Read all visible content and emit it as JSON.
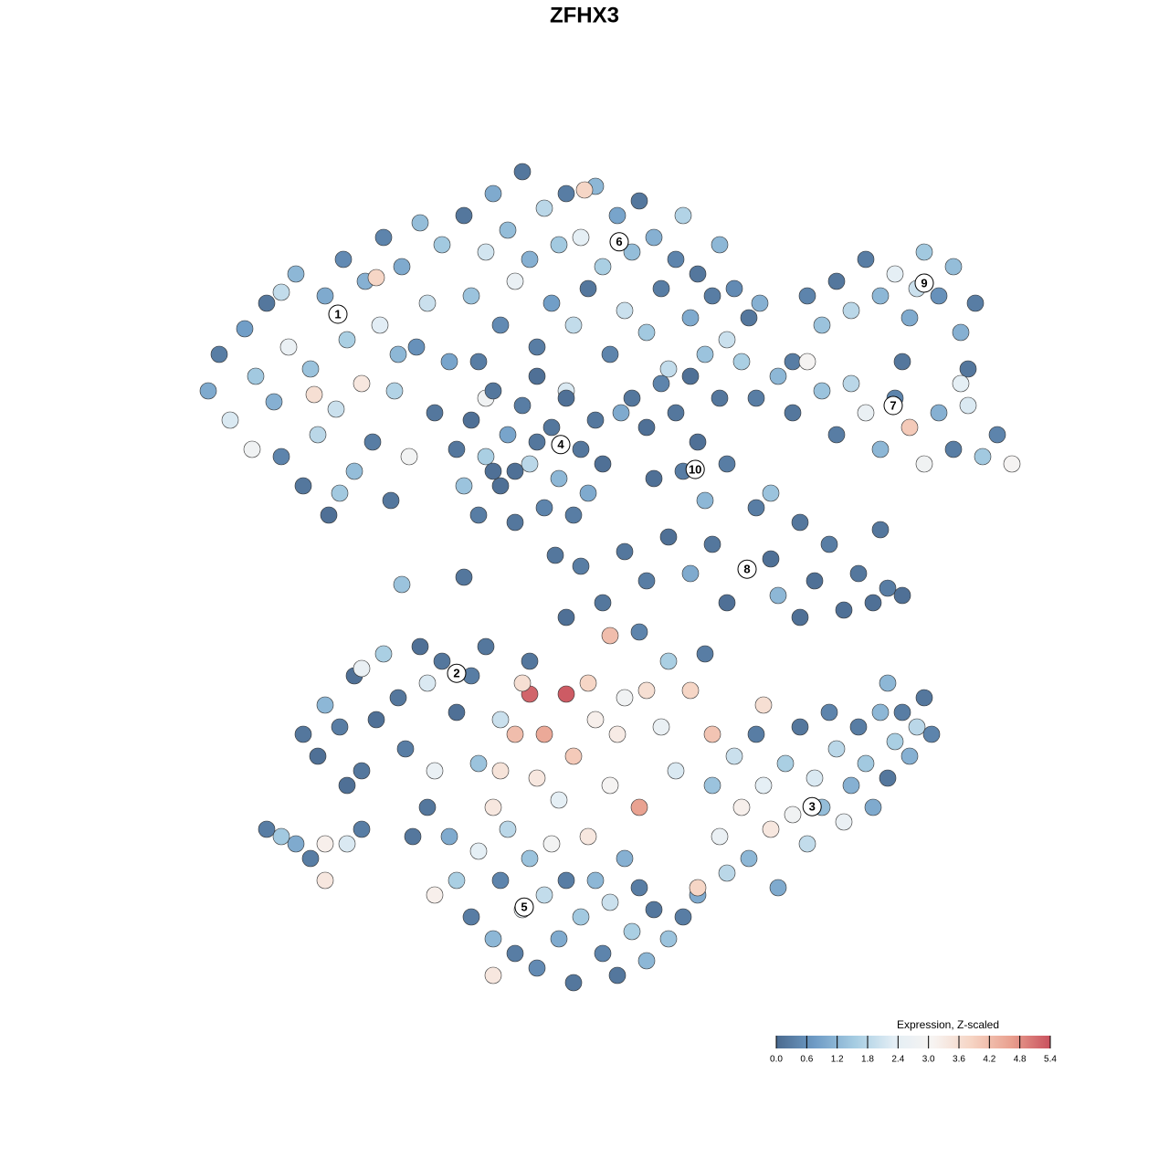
{
  "chart_data": {
    "type": "scatter",
    "title": "ZFHX3",
    "xlim": [
      -12,
      12
    ],
    "ylim": [
      -12,
      12
    ],
    "colorbar": {
      "title": "Expression, Z-scaled",
      "clim": [
        0,
        5.4
      ],
      "colors": [
        "#4a6a8f",
        "#6f9cc6",
        "#a5cce2",
        "#e3eef5",
        "#f7f4f2",
        "#f6d4c3",
        "#e9a08f",
        "#c9515e"
      ],
      "ticks": [
        {
          "value": 0,
          "label": "0.0"
        },
        {
          "value": 0.6,
          "label": "0.6"
        },
        {
          "value": 1.2,
          "label": "1.2"
        },
        {
          "value": 1.8,
          "label": "1.8"
        },
        {
          "value": 2.4,
          "label": "2.4"
        },
        {
          "value": 3,
          "label": "3.0"
        },
        {
          "value": 3.6,
          "label": "3.6"
        },
        {
          "value": 4.2,
          "label": "4.2"
        },
        {
          "value": 4.8,
          "label": "4.8"
        },
        {
          "value": 5.4,
          "label": "5.4"
        }
      ]
    },
    "clusters": [
      {
        "label": "1",
        "x": -7.25,
        "y": 6.9
      },
      {
        "label": "2",
        "x": -4,
        "y": -2.93
      },
      {
        "label": "3",
        "x": 5.73,
        "y": -6.58
      },
      {
        "label": "4",
        "x": -1.15,
        "y": 3.33
      },
      {
        "label": "5",
        "x": -2.15,
        "y": -9.33
      },
      {
        "label": "6",
        "x": 0.45,
        "y": 8.88
      },
      {
        "label": "7",
        "x": 7.95,
        "y": 4.4
      },
      {
        "label": "8",
        "x": 3.95,
        "y": -0.08
      },
      {
        "label": "9",
        "x": 8.8,
        "y": 7.75
      },
      {
        "label": "10",
        "x": 2.53,
        "y": 2.65
      }
    ],
    "points": [
      [
        -10.8,
        4.8,
        1.0
      ],
      [
        -10.5,
        5.8,
        0.3
      ],
      [
        -10.2,
        4.0,
        2.2
      ],
      [
        -9.8,
        6.5,
        0.8
      ],
      [
        -9.5,
        5.2,
        1.5
      ],
      [
        -9.2,
        7.2,
        0.2
      ],
      [
        -9.0,
        4.5,
        1.1
      ],
      [
        -8.8,
        3.0,
        0.4
      ],
      [
        -8.6,
        6.0,
        2.6
      ],
      [
        -8.4,
        8.0,
        1.2
      ],
      [
        -8.2,
        2.2,
        0.2
      ],
      [
        -8.0,
        5.4,
        1.4
      ],
      [
        -7.8,
        3.6,
        1.8
      ],
      [
        -7.6,
        7.4,
        1.0
      ],
      [
        -7.5,
        1.4,
        0.1
      ],
      [
        -7.3,
        4.3,
        2.0
      ],
      [
        -7.1,
        8.4,
        0.5
      ],
      [
        -7.0,
        6.2,
        1.6
      ],
      [
        -6.8,
        2.6,
        1.3
      ],
      [
        -6.6,
        5.0,
        3.4
      ],
      [
        -6.5,
        7.8,
        1.1
      ],
      [
        -6.3,
        3.4,
        0.3
      ],
      [
        -6.1,
        6.6,
        2.3
      ],
      [
        -6.0,
        9.0,
        0.4
      ],
      [
        -5.8,
        1.8,
        0.2
      ],
      [
        -5.7,
        4.8,
        1.7
      ],
      [
        -5.5,
        8.2,
        1.0
      ],
      [
        -5.3,
        3.0,
        2.9
      ],
      [
        -5.1,
        6.0,
        0.6
      ],
      [
        -5.0,
        9.4,
        1.3
      ],
      [
        -4.8,
        7.2,
        2.0
      ],
      [
        -4.6,
        4.2,
        0.2
      ],
      [
        -4.4,
        8.8,
        1.5
      ],
      [
        -4.2,
        5.6,
        0.9
      ],
      [
        -6.2,
        7.9,
        3.8
      ],
      [
        -7.9,
        4.7,
        3.6
      ],
      [
        -9.6,
        3.2,
        2.8
      ],
      [
        -7.2,
        2.0,
        1.5
      ],
      [
        -8.8,
        7.5,
        1.9
      ],
      [
        -5.6,
        5.8,
        1.2
      ],
      [
        -3.8,
        9.6,
        0.2
      ],
      [
        -3.6,
        7.4,
        1.4
      ],
      [
        -3.4,
        5.6,
        0.3
      ],
      [
        -3.2,
        8.6,
        2.1
      ],
      [
        -3.0,
        10.2,
        1.0
      ],
      [
        -2.8,
        6.6,
        0.5
      ],
      [
        -2.6,
        9.2,
        1.3
      ],
      [
        -2.4,
        7.8,
        2.6
      ],
      [
        -2.2,
        10.8,
        0.2
      ],
      [
        -2.0,
        8.4,
        1.1
      ],
      [
        -1.8,
        6.0,
        0.3
      ],
      [
        -1.6,
        9.8,
        1.8
      ],
      [
        -1.4,
        7.2,
        0.8
      ],
      [
        -1.2,
        8.8,
        1.5
      ],
      [
        -1.0,
        10.2,
        0.3
      ],
      [
        -0.8,
        6.6,
        1.9
      ],
      [
        -0.6,
        9.0,
        2.4
      ],
      [
        -0.4,
        7.6,
        0.2
      ],
      [
        -0.2,
        10.4,
        1.2
      ],
      [
        0.0,
        8.2,
        1.6
      ],
      [
        0.2,
        5.8,
        0.4
      ],
      [
        0.4,
        9.6,
        0.9
      ],
      [
        0.6,
        7.0,
        2.0
      ],
      [
        0.8,
        8.6,
        1.3
      ],
      [
        1.0,
        10.0,
        0.2
      ],
      [
        1.2,
        6.4,
        1.5
      ],
      [
        1.4,
        9.0,
        1.1
      ],
      [
        1.6,
        7.6,
        0.3
      ],
      [
        1.8,
        5.4,
        1.9
      ],
      [
        2.0,
        8.4,
        0.4
      ],
      [
        2.2,
        9.6,
        1.7
      ],
      [
        2.4,
        6.8,
        1.0
      ],
      [
        2.6,
        8.0,
        0.2
      ],
      [
        2.8,
        5.8,
        1.4
      ],
      [
        3.0,
        7.4,
        0.3
      ],
      [
        3.2,
        8.8,
        1.2
      ],
      [
        3.4,
        6.2,
        2.0
      ],
      [
        3.6,
        7.6,
        0.5
      ],
      [
        3.8,
        5.6,
        1.6
      ],
      [
        4.0,
        6.8,
        0.2
      ],
      [
        4.3,
        7.2,
        1.1
      ],
      [
        -1.0,
        4.8,
        2.2
      ],
      [
        0.5,
        4.2,
        1.0
      ],
      [
        -3.2,
        4.6,
        2.8
      ],
      [
        -0.5,
        10.3,
        3.8
      ],
      [
        -4.0,
        3.2,
        0.2
      ],
      [
        -3.8,
        2.2,
        1.4
      ],
      [
        -3.6,
        4.0,
        0.1
      ],
      [
        -3.4,
        1.4,
        0.3
      ],
      [
        -3.2,
        3.0,
        1.6
      ],
      [
        -3.0,
        4.8,
        0.2
      ],
      [
        -2.8,
        2.2,
        0.1
      ],
      [
        -2.6,
        3.6,
        0.9
      ],
      [
        -2.4,
        1.2,
        0.2
      ],
      [
        -2.2,
        4.4,
        0.3
      ],
      [
        -2.0,
        2.8,
        1.8
      ],
      [
        -1.8,
        5.2,
        0.1
      ],
      [
        -1.6,
        1.6,
        0.4
      ],
      [
        -1.4,
        3.8,
        0.2
      ],
      [
        -1.2,
        2.4,
        1.2
      ],
      [
        -1.0,
        4.6,
        0.1
      ],
      [
        -0.8,
        1.4,
        0.3
      ],
      [
        -0.6,
        3.2,
        0.2
      ],
      [
        -0.4,
        2.0,
        1.0
      ],
      [
        -0.2,
        4.0,
        0.2
      ],
      [
        0.0,
        2.8,
        0.1
      ],
      [
        -2.4,
        2.6,
        0.1
      ],
      [
        -1.8,
        3.4,
        0.2
      ],
      [
        -3.0,
        2.6,
        0.1
      ],
      [
        0.8,
        4.6,
        0.2
      ],
      [
        1.2,
        3.8,
        0.1
      ],
      [
        1.6,
        5.0,
        0.4
      ],
      [
        2.0,
        4.2,
        0.2
      ],
      [
        2.2,
        2.6,
        0.3
      ],
      [
        2.6,
        3.4,
        0.1
      ],
      [
        2.8,
        1.8,
        1.2
      ],
      [
        3.2,
        4.6,
        0.2
      ],
      [
        3.4,
        2.8,
        0.3
      ],
      [
        2.4,
        5.2,
        0.1
      ],
      [
        1.4,
        2.4,
        0.1
      ],
      [
        5.6,
        7.4,
        0.4
      ],
      [
        6.0,
        6.6,
        1.4
      ],
      [
        6.4,
        7.8,
        0.2
      ],
      [
        6.8,
        7.0,
        1.8
      ],
      [
        7.2,
        8.4,
        0.3
      ],
      [
        7.6,
        7.4,
        1.2
      ],
      [
        8.0,
        8.0,
        2.4
      ],
      [
        8.4,
        6.8,
        1.0
      ],
      [
        8.8,
        8.6,
        1.5
      ],
      [
        9.2,
        7.4,
        0.6
      ],
      [
        9.6,
        8.2,
        1.3
      ],
      [
        9.8,
        6.4,
        1.1
      ],
      [
        10.2,
        7.2,
        0.3
      ],
      [
        10.0,
        5.4,
        0.2
      ],
      [
        5.2,
        5.6,
        0.3
      ],
      [
        8.6,
        7.6,
        2.0
      ],
      [
        4.2,
        4.6,
        0.3
      ],
      [
        4.8,
        5.2,
        1.2
      ],
      [
        5.2,
        4.2,
        0.2
      ],
      [
        5.6,
        5.6,
        3.0
      ],
      [
        6.0,
        4.8,
        1.4
      ],
      [
        6.4,
        3.6,
        0.3
      ],
      [
        6.8,
        5.0,
        1.8
      ],
      [
        7.2,
        4.2,
        2.6
      ],
      [
        7.6,
        3.2,
        1.2
      ],
      [
        8.0,
        4.6,
        0.4
      ],
      [
        8.4,
        3.8,
        4.0
      ],
      [
        8.8,
        2.8,
        2.8
      ],
      [
        9.2,
        4.2,
        1.1
      ],
      [
        9.6,
        3.2,
        0.3
      ],
      [
        10.0,
        4.4,
        2.2
      ],
      [
        10.4,
        3.0,
        1.5
      ],
      [
        10.8,
        3.6,
        0.4
      ],
      [
        11.2,
        2.8,
        3.0
      ],
      [
        9.8,
        5.0,
        2.4
      ],
      [
        8.2,
        5.6,
        0.2
      ],
      [
        0.6,
        0.4,
        0.2
      ],
      [
        1.2,
        -0.4,
        0.3
      ],
      [
        1.8,
        0.8,
        0.1
      ],
      [
        2.4,
        -0.2,
        1.0
      ],
      [
        3.0,
        0.6,
        0.2
      ],
      [
        3.4,
        -1.0,
        0.1
      ],
      [
        4.2,
        1.6,
        0.3
      ],
      [
        4.6,
        0.2,
        0.1
      ],
      [
        4.8,
        -0.8,
        1.2
      ],
      [
        5.4,
        1.2,
        0.2
      ],
      [
        5.8,
        -0.4,
        0.1
      ],
      [
        6.2,
        0.6,
        0.3
      ],
      [
        6.6,
        -1.2,
        0.1
      ],
      [
        7.0,
        -0.2,
        0.2
      ],
      [
        7.4,
        -1.0,
        0.1
      ],
      [
        7.8,
        -0.6,
        0.3
      ],
      [
        8.2,
        -0.8,
        0.1
      ],
      [
        4.6,
        2.0,
        1.4
      ],
      [
        7.6,
        1.0,
        0.2
      ],
      [
        5.4,
        -1.4,
        0.1
      ],
      [
        -8.2,
        -4.6,
        0.2
      ],
      [
        -7.8,
        -5.2,
        0.1
      ],
      [
        -7.6,
        -3.8,
        1.2
      ],
      [
        -7.2,
        -4.4,
        0.3
      ],
      [
        -6.8,
        -3.0,
        0.1
      ],
      [
        -6.6,
        -5.6,
        0.2
      ],
      [
        -6.2,
        -4.2,
        0.1
      ],
      [
        -6.0,
        -2.4,
        1.6
      ],
      [
        -5.6,
        -3.6,
        0.2
      ],
      [
        -5.4,
        -5.0,
        0.3
      ],
      [
        -5.0,
        -2.2,
        0.1
      ],
      [
        -4.8,
        -3.2,
        2.2
      ],
      [
        -4.4,
        -2.6,
        0.2
      ],
      [
        -4.0,
        -4.0,
        0.1
      ],
      [
        -3.6,
        -3.0,
        0.3
      ],
      [
        -3.2,
        -2.2,
        0.2
      ],
      [
        -6.6,
        -2.8,
        2.6
      ],
      [
        -7.0,
        -6.0,
        0.1
      ],
      [
        -2.0,
        -3.5,
        5.2
      ],
      [
        -1.0,
        -3.5,
        5.3
      ],
      [
        -0.4,
        -3.2,
        3.8
      ],
      [
        -2.2,
        -3.2,
        3.6
      ],
      [
        -2.4,
        -4.6,
        4.2
      ],
      [
        -1.6,
        -4.6,
        4.5
      ],
      [
        -0.8,
        -5.2,
        4.0
      ],
      [
        -1.8,
        -5.8,
        3.4
      ],
      [
        -2.8,
        -5.6,
        3.5
      ],
      [
        -0.2,
        -4.2,
        3.2
      ],
      [
        0.6,
        -3.6,
        2.8
      ],
      [
        0.4,
        -4.6,
        3.3
      ],
      [
        1.2,
        -3.4,
        3.6
      ],
      [
        1.6,
        -4.4,
        2.6
      ],
      [
        2.4,
        -3.4,
        3.8
      ],
      [
        -1.2,
        -6.4,
        2.4
      ],
      [
        0.2,
        -6.0,
        3.0
      ],
      [
        -3.0,
        -6.6,
        3.4
      ],
      [
        1.0,
        -6.6,
        4.6
      ],
      [
        2.0,
        -5.6,
        2.2
      ],
      [
        0.2,
        -1.9,
        4.2
      ],
      [
        -2.8,
        -4.2,
        2.0
      ],
      [
        -3.4,
        -5.4,
        1.4
      ],
      [
        1.8,
        -2.6,
        1.6
      ],
      [
        2.8,
        -2.4,
        0.3
      ],
      [
        0.0,
        -1.0,
        0.2
      ],
      [
        1.0,
        -1.8,
        0.4
      ],
      [
        -1.0,
        -1.4,
        0.1
      ],
      [
        -2.0,
        -2.6,
        0.2
      ],
      [
        -4.2,
        -7.4,
        1.0
      ],
      [
        -4.0,
        -8.6,
        1.6
      ],
      [
        -3.6,
        -9.6,
        0.3
      ],
      [
        -3.4,
        -7.8,
        2.4
      ],
      [
        -3.0,
        -10.2,
        1.2
      ],
      [
        -2.8,
        -8.6,
        0.4
      ],
      [
        -2.6,
        -7.2,
        1.8
      ],
      [
        -2.4,
        -10.6,
        0.3
      ],
      [
        -2.2,
        -9.4,
        2.6
      ],
      [
        -2.0,
        -8.0,
        1.4
      ],
      [
        -1.8,
        -11.0,
        0.5
      ],
      [
        -1.6,
        -9.0,
        1.9
      ],
      [
        -1.4,
        -7.6,
        2.9
      ],
      [
        -1.2,
        -10.2,
        1.0
      ],
      [
        -1.0,
        -8.6,
        0.3
      ],
      [
        -0.8,
        -11.4,
        0.2
      ],
      [
        -0.6,
        -9.6,
        1.5
      ],
      [
        -0.4,
        -7.4,
        3.4
      ],
      [
        -0.2,
        -8.6,
        1.2
      ],
      [
        0.0,
        -10.6,
        0.4
      ],
      [
        0.2,
        -9.2,
        2.0
      ],
      [
        0.4,
        -11.2,
        0.2
      ],
      [
        0.6,
        -8.0,
        1.1
      ],
      [
        0.8,
        -10.0,
        1.6
      ],
      [
        1.0,
        -8.8,
        0.3
      ],
      [
        1.2,
        -10.8,
        1.2
      ],
      [
        1.4,
        -9.4,
        0.2
      ],
      [
        1.8,
        -10.2,
        1.4
      ],
      [
        2.2,
        -9.6,
        0.3
      ],
      [
        -3.0,
        -11.2,
        3.4
      ],
      [
        -4.6,
        -9.0,
        3.2
      ],
      [
        2.6,
        -9.0,
        1.0
      ],
      [
        3.0,
        -6.0,
        1.4
      ],
      [
        3.2,
        -7.4,
        2.6
      ],
      [
        3.4,
        -8.4,
        1.8
      ],
      [
        3.6,
        -5.2,
        2.0
      ],
      [
        3.8,
        -6.6,
        3.2
      ],
      [
        4.0,
        -8.0,
        1.2
      ],
      [
        4.2,
        -4.6,
        0.3
      ],
      [
        4.4,
        -6.0,
        2.4
      ],
      [
        4.6,
        -7.2,
        3.4
      ],
      [
        4.8,
        -8.8,
        1.0
      ],
      [
        5.0,
        -5.4,
        1.6
      ],
      [
        5.2,
        -6.8,
        2.8
      ],
      [
        5.4,
        -4.4,
        0.2
      ],
      [
        5.6,
        -7.6,
        1.9
      ],
      [
        5.8,
        -5.8,
        2.2
      ],
      [
        6.0,
        -6.6,
        1.3
      ],
      [
        6.2,
        -4.0,
        0.4
      ],
      [
        6.4,
        -5.0,
        1.8
      ],
      [
        6.6,
        -7.0,
        2.6
      ],
      [
        6.8,
        -6.0,
        1.1
      ],
      [
        7.0,
        -4.4,
        0.3
      ],
      [
        7.2,
        -5.4,
        1.5
      ],
      [
        7.4,
        -6.6,
        1.0
      ],
      [
        7.6,
        -4.0,
        1.2
      ],
      [
        7.8,
        -5.8,
        0.2
      ],
      [
        8.0,
        -4.8,
        1.6
      ],
      [
        8.2,
        -4.0,
        0.3
      ],
      [
        8.4,
        -5.2,
        1.1
      ],
      [
        8.6,
        -4.4,
        1.8
      ],
      [
        8.8,
        -3.6,
        0.2
      ],
      [
        9.0,
        -4.6,
        0.4
      ],
      [
        2.6,
        -8.8,
        3.8
      ],
      [
        4.4,
        -3.8,
        3.6
      ],
      [
        3.0,
        -4.6,
        4.1
      ],
      [
        7.8,
        -3.2,
        1.2
      ],
      [
        -9.2,
        -7.2,
        0.3
      ],
      [
        -8.8,
        -7.4,
        1.5
      ],
      [
        -8.4,
        -7.6,
        1.0
      ],
      [
        -8.0,
        -8.0,
        0.3
      ],
      [
        -7.6,
        -7.6,
        3.2
      ],
      [
        -7.6,
        -8.6,
        3.4
      ],
      [
        -7.0,
        -7.6,
        2.2
      ],
      [
        -6.6,
        -7.2,
        0.3
      ],
      [
        -5.5,
        -0.5,
        1.4
      ],
      [
        -3.8,
        -0.3,
        0.2
      ],
      [
        -1.3,
        0.3,
        0.2
      ],
      [
        -0.6,
        0.0,
        0.3
      ],
      [
        -5.2,
        -7.4,
        0.2
      ],
      [
        -4.6,
        -5.6,
        2.6
      ],
      [
        -4.8,
        -6.6,
        0.2
      ]
    ]
  }
}
